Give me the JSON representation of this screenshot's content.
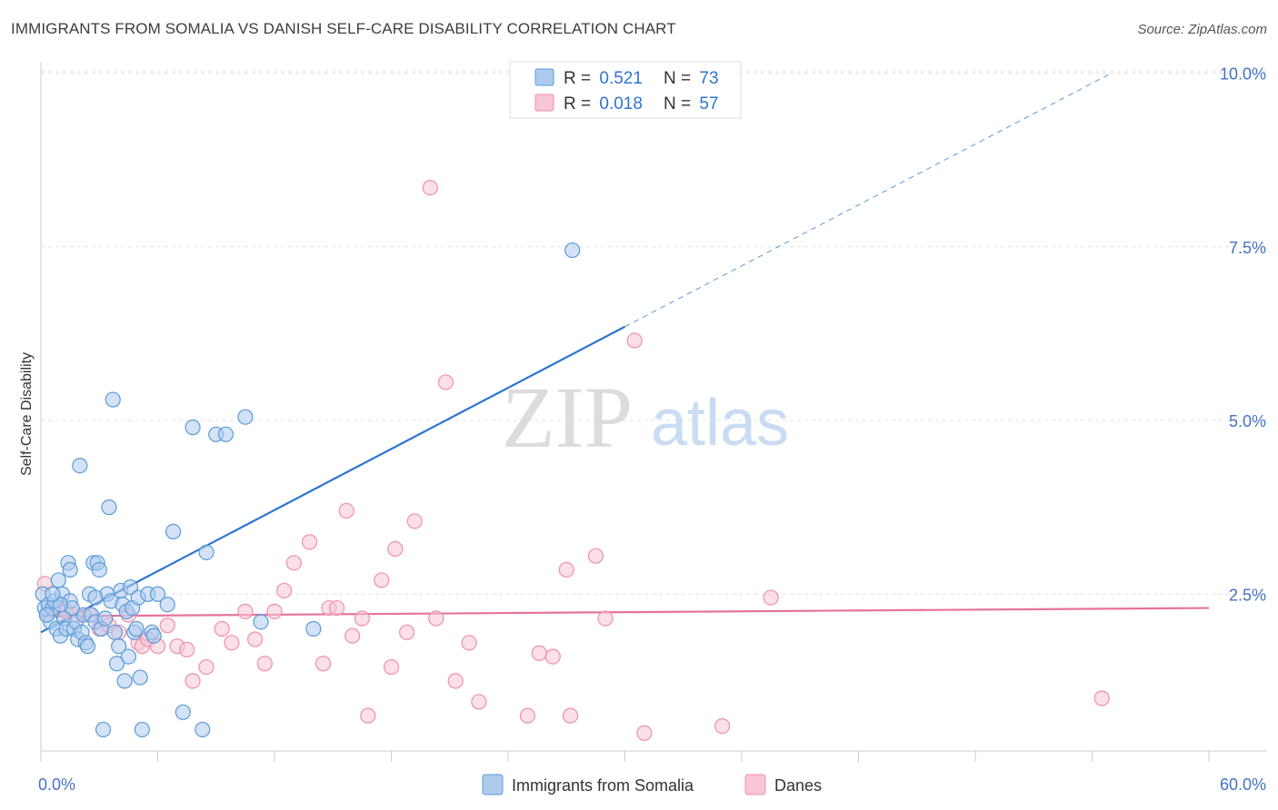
{
  "title": "IMMIGRANTS FROM SOMALIA VS DANISH SELF-CARE DISABILITY CORRELATION CHART",
  "source": "Source: ZipAtlas.com",
  "watermark": {
    "zip": "ZIP",
    "atlas": "atlas"
  },
  "colors": {
    "somalia": "#5b9bd5",
    "somalia_fill": "#aecbef",
    "somalia_line": "#2f74d0",
    "danes": "#ef8fae",
    "danes_fill": "#f8c6d4",
    "danes_line": "#e8729a",
    "grid": "#dddddd",
    "tick_text": "#4472c4"
  },
  "legend": {
    "rows": [
      {
        "r_label": "R = ",
        "r_value": "0.521",
        "n_label": "N = ",
        "n_value": "73"
      },
      {
        "r_label": "R = ",
        "r_value": "0.018",
        "n_label": "N = ",
        "n_value": "57"
      }
    ]
  },
  "chart_data": {
    "type": "scatter",
    "title": "IMMIGRANTS FROM SOMALIA VS DANISH SELF-CARE DISABILITY CORRELATION CHART",
    "xlabel": "",
    "ylabel": "Self-Care Disability",
    "xlim": [
      0,
      60
    ],
    "ylim": [
      0,
      10.5
    ],
    "x_tick_labels": [
      {
        "value": 0,
        "label": "0.0%"
      },
      {
        "value": 60,
        "label": "60.0%"
      }
    ],
    "y_ticks": [
      {
        "value": 2.5,
        "label": "2.5%"
      },
      {
        "value": 5.0,
        "label": "5.0%"
      },
      {
        "value": 7.5,
        "label": "7.5%"
      },
      {
        "value": 10.0,
        "label": "10.0%"
      }
    ],
    "x_minor_ticks": [
      0,
      6,
      12,
      18,
      24,
      30,
      36,
      42,
      48,
      54,
      60
    ],
    "series": [
      {
        "name": "Immigrants from Somalia",
        "color": "#5b9bd5",
        "trend": {
          "x0": 0,
          "y0": 1.95,
          "x1": 30,
          "y1": 6.35,
          "dash_to_x": 55,
          "dash_to_y": 10.0
        },
        "points": [
          [
            0.1,
            2.5
          ],
          [
            0.2,
            2.3
          ],
          [
            0.3,
            2.2
          ],
          [
            0.4,
            2.35
          ],
          [
            0.5,
            2.1
          ],
          [
            0.6,
            2.3
          ],
          [
            0.7,
            2.4
          ],
          [
            0.8,
            2.0
          ],
          [
            0.9,
            2.7
          ],
          [
            1.0,
            1.9
          ],
          [
            1.1,
            2.5
          ],
          [
            1.2,
            2.15
          ],
          [
            1.3,
            2.0
          ],
          [
            1.4,
            2.95
          ],
          [
            1.5,
            2.4
          ],
          [
            1.6,
            2.3
          ],
          [
            1.7,
            2.0
          ],
          [
            1.8,
            2.1
          ],
          [
            1.9,
            1.85
          ],
          [
            2.0,
            4.35
          ],
          [
            2.1,
            1.95
          ],
          [
            2.2,
            2.2
          ],
          [
            2.3,
            1.8
          ],
          [
            2.4,
            1.75
          ],
          [
            2.5,
            2.5
          ],
          [
            2.6,
            2.2
          ],
          [
            2.7,
            2.95
          ],
          [
            2.8,
            2.1
          ],
          [
            2.9,
            2.95
          ],
          [
            3.0,
            2.85
          ],
          [
            3.1,
            2.0
          ],
          [
            3.2,
            0.55
          ],
          [
            3.4,
            2.5
          ],
          [
            3.5,
            3.75
          ],
          [
            3.6,
            2.4
          ],
          [
            3.7,
            5.3
          ],
          [
            3.8,
            1.95
          ],
          [
            3.9,
            1.5
          ],
          [
            4.0,
            1.75
          ],
          [
            4.1,
            2.55
          ],
          [
            4.2,
            2.35
          ],
          [
            4.3,
            1.25
          ],
          [
            4.4,
            2.25
          ],
          [
            4.5,
            1.6
          ],
          [
            4.6,
            2.6
          ],
          [
            4.7,
            2.3
          ],
          [
            4.8,
            1.95
          ],
          [
            4.9,
            2.0
          ],
          [
            5.0,
            2.45
          ],
          [
            5.1,
            1.3
          ],
          [
            5.2,
            0.55
          ],
          [
            5.5,
            2.5
          ],
          [
            5.7,
            1.95
          ],
          [
            5.8,
            1.9
          ],
          [
            6.0,
            2.5
          ],
          [
            6.5,
            2.35
          ],
          [
            6.8,
            3.4
          ],
          [
            7.3,
            0.8
          ],
          [
            7.8,
            4.9
          ],
          [
            8.3,
            0.55
          ],
          [
            8.5,
            3.1
          ],
          [
            9.0,
            4.8
          ],
          [
            9.5,
            4.8
          ],
          [
            10.5,
            5.05
          ],
          [
            11.3,
            2.1
          ],
          [
            14.0,
            2.0
          ],
          [
            27.3,
            7.45
          ],
          [
            0.3,
            2.2
          ],
          [
            1.5,
            2.85
          ],
          [
            2.8,
            2.45
          ],
          [
            3.3,
            2.15
          ],
          [
            1.0,
            2.35
          ],
          [
            0.6,
            2.5
          ]
        ]
      },
      {
        "name": "Danes",
        "color": "#ef8fae",
        "trend": {
          "x0": 0,
          "y0": 2.18,
          "x1": 60,
          "y1": 2.3
        },
        "points": [
          [
            0.2,
            2.65
          ],
          [
            1.0,
            2.3
          ],
          [
            1.8,
            2.2
          ],
          [
            2.5,
            2.2
          ],
          [
            3.0,
            2.0
          ],
          [
            3.5,
            2.05
          ],
          [
            4.0,
            1.95
          ],
          [
            4.5,
            2.2
          ],
          [
            5.0,
            1.8
          ],
          [
            5.2,
            1.75
          ],
          [
            5.5,
            1.85
          ],
          [
            6.0,
            1.75
          ],
          [
            6.5,
            2.05
          ],
          [
            7.0,
            1.75
          ],
          [
            7.5,
            1.7
          ],
          [
            7.8,
            1.25
          ],
          [
            8.5,
            1.45
          ],
          [
            9.3,
            2.0
          ],
          [
            9.8,
            1.8
          ],
          [
            10.5,
            2.25
          ],
          [
            11.0,
            1.85
          ],
          [
            11.5,
            1.5
          ],
          [
            12.0,
            2.25
          ],
          [
            12.5,
            2.55
          ],
          [
            13.0,
            2.95
          ],
          [
            13.8,
            3.25
          ],
          [
            14.5,
            1.5
          ],
          [
            14.8,
            2.3
          ],
          [
            15.2,
            2.3
          ],
          [
            15.7,
            3.7
          ],
          [
            16.0,
            1.9
          ],
          [
            16.5,
            2.15
          ],
          [
            16.8,
            0.75
          ],
          [
            17.5,
            2.7
          ],
          [
            18.0,
            1.45
          ],
          [
            18.2,
            3.15
          ],
          [
            18.8,
            1.95
          ],
          [
            19.2,
            3.55
          ],
          [
            20.0,
            8.35
          ],
          [
            20.3,
            2.15
          ],
          [
            20.8,
            5.55
          ],
          [
            21.3,
            1.25
          ],
          [
            22.0,
            1.8
          ],
          [
            22.5,
            0.95
          ],
          [
            25.0,
            0.75
          ],
          [
            25.6,
            1.65
          ],
          [
            26.3,
            1.6
          ],
          [
            27.0,
            2.85
          ],
          [
            27.2,
            0.75
          ],
          [
            28.5,
            3.05
          ],
          [
            29.0,
            2.15
          ],
          [
            30.5,
            6.15
          ],
          [
            31.0,
            0.5
          ],
          [
            35.0,
            0.6
          ],
          [
            37.5,
            2.45
          ],
          [
            54.5,
            1.0
          ],
          [
            1.3,
            2.25
          ]
        ]
      }
    ]
  },
  "bottom_legend": [
    {
      "label": "Immigrants from Somalia"
    },
    {
      "label": "Danes"
    }
  ]
}
